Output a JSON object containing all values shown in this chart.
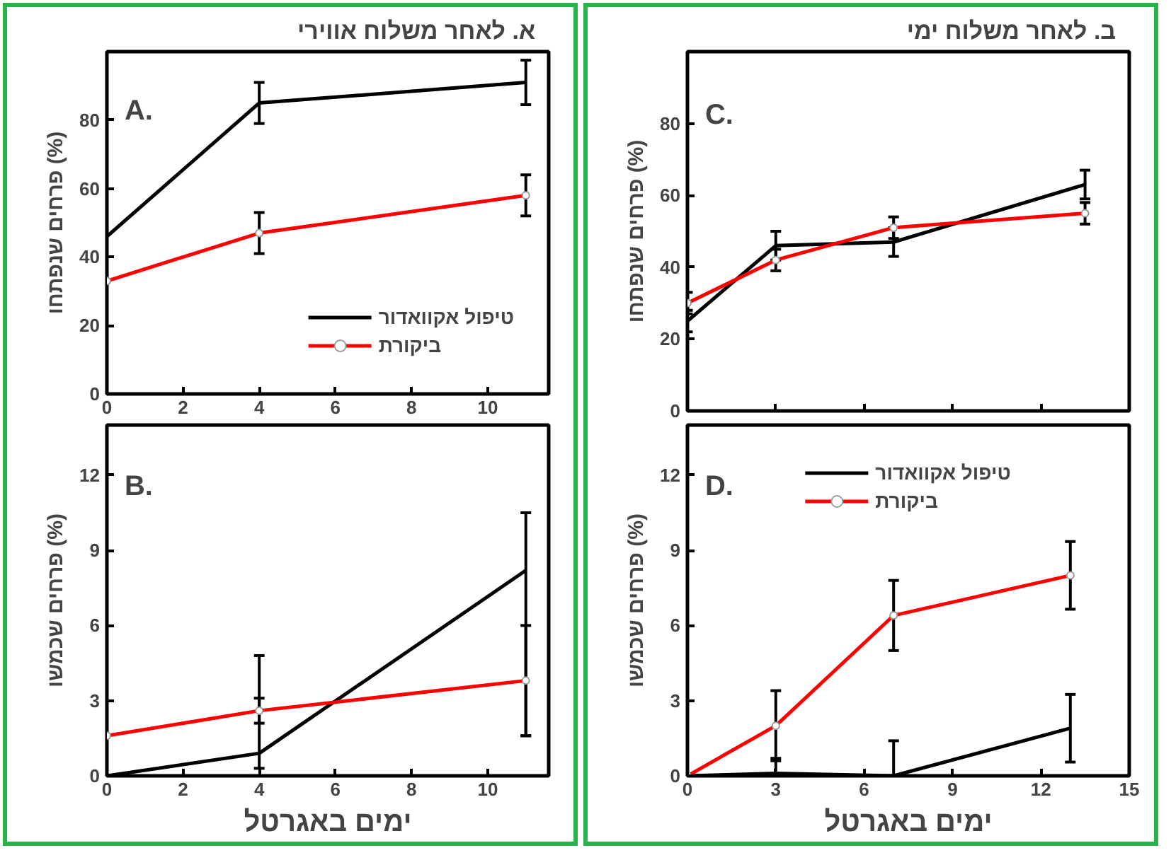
{
  "chart_data": [
    {
      "type": "line",
      "title": "א.   לאחר משלוח אווירי",
      "ylabel": "פרחים שנפתחו (%)",
      "annotations": [
        "A."
      ],
      "x": [
        0,
        4,
        11
      ],
      "xlim": [
        0,
        11.6
      ],
      "xticks": [
        0,
        2,
        4,
        6,
        8,
        10
      ],
      "ylim": [
        0,
        100
      ],
      "yticks": [
        0,
        20,
        40,
        60,
        80
      ],
      "grid": false,
      "legend": "bottom right",
      "line_style": "solid",
      "series": [
        {
          "name": "טיפול אקוואדור",
          "color": "#000000",
          "marker": "none",
          "values": [
            46,
            85,
            91
          ],
          "errors": [
            null,
            6,
            6.5
          ]
        },
        {
          "name": "ביקורת",
          "color": "#ff0000",
          "marker": "circle",
          "values": [
            33,
            47,
            58
          ],
          "errors": [
            null,
            6,
            6
          ]
        }
      ]
    },
    {
      "type": "line",
      "title": "ב.   לאחר משלוח ימי",
      "ylabel": "פרחים שנפתחו (%)",
      "annotations": [
        "C."
      ],
      "x": [
        0,
        3,
        7,
        13.5
      ],
      "xlim": [
        0,
        15
      ],
      "xticks": [
        0,
        3,
        6,
        9,
        12,
        15
      ],
      "ylim": [
        0,
        100
      ],
      "yticks": [
        0,
        20,
        40,
        60,
        80
      ],
      "tick_labels": "y",
      "grid": false,
      "line_style": "solid",
      "series": [
        {
          "color": "#000000",
          "marker": "none",
          "values": [
            25,
            46,
            47,
            63
          ],
          "errors": [
            3,
            4,
            4,
            4
          ]
        },
        {
          "color": "#ff0000",
          "marker": "circle",
          "values": [
            30,
            42,
            51,
            55
          ],
          "errors": [
            3,
            3,
            3,
            3
          ]
        }
      ]
    },
    {
      "type": "line",
      "ylabel": "פרחים שכמשו (%)",
      "xlabel": "ימים באגרטל",
      "annotations": [
        "B."
      ],
      "x": [
        0,
        4,
        11
      ],
      "xlim": [
        0,
        11.6
      ],
      "xticks": [
        0,
        2,
        4,
        6,
        8,
        10
      ],
      "ylim": [
        0,
        14
      ],
      "yticks": [
        0,
        3,
        6,
        9,
        12
      ],
      "grid": false,
      "line_style": "solid",
      "series": [
        {
          "color": "#000000",
          "marker": "none",
          "values": [
            0,
            0.9,
            8.2
          ],
          "errors": [
            null,
            [
              0.3,
              4.8
            ],
            [
              1.6,
              10.5
            ]
          ]
        },
        {
          "color": "#ff0000",
          "marker": "circle",
          "values": [
            1.6,
            2.6,
            3.8
          ],
          "errors": [
            null,
            [
              2.1,
              3.1
            ],
            [
              1.6,
              6.0
            ]
          ]
        }
      ]
    },
    {
      "type": "line",
      "ylabel": "פרחים שכמשו (%)",
      "xlabel": "ימים באגרטל",
      "annotations": [
        "D."
      ],
      "x": [
        0,
        3,
        7,
        13
      ],
      "xlim": [
        0,
        15
      ],
      "xticks": [
        0,
        3,
        6,
        9,
        12,
        15
      ],
      "ylim": [
        0,
        14
      ],
      "yticks": [
        0,
        3,
        6,
        9,
        12
      ],
      "grid": false,
      "legend": "top",
      "line_style": "solid",
      "series": [
        {
          "name": "טיפול אקוואדור",
          "color": "#000000",
          "marker": "none",
          "values": [
            0,
            0.1,
            0,
            1.9
          ],
          "errors": [
            null,
            [
              0,
              0.7
            ],
            [
              0,
              1.4
            ],
            1.35
          ]
        },
        {
          "name": "ביקורת",
          "color": "#ff0000",
          "marker": "circle",
          "values": [
            0,
            2,
            6.4,
            8
          ],
          "errors": [
            null,
            1.4,
            1.4,
            1.35
          ]
        }
      ]
    }
  ]
}
